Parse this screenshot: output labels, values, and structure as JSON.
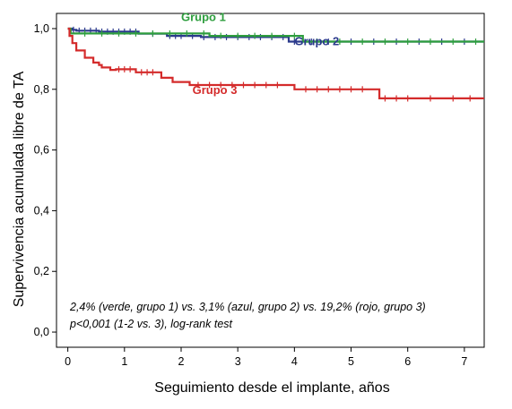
{
  "chart_data": {
    "type": "line",
    "xlabel": "Seguimiento desde el implante, años",
    "ylabel": "Supervivencia acumulada libre de TA",
    "xlim": [
      -0.2,
      7.35
    ],
    "ylim": [
      -0.05,
      1.05
    ],
    "x_ticks": [
      0,
      1,
      2,
      3,
      4,
      5,
      6,
      7
    ],
    "x_tick_labels": [
      "0",
      "1",
      "2",
      "3",
      "4",
      "5",
      "6",
      "7"
    ],
    "y_ticks": [
      0.0,
      0.2,
      0.4,
      0.6,
      0.8,
      1.0
    ],
    "y_tick_labels": [
      "0,0",
      "0,2",
      "0,4",
      "0,6",
      "0,8",
      "1,0"
    ],
    "grid": false,
    "annotation_lines": [
      "2,4% (verde, grupo 1) vs. 3,1% (azul, grupo 2) vs. 19,2% (rojo, grupo 3)",
      "p<0,001 (1-2 vs. 3), log-rank test"
    ],
    "series": [
      {
        "name": "Grupo 2",
        "color": "#2b3a8c",
        "x": [
          0,
          0.08,
          0.08,
          0.15,
          0.15,
          0.55,
          0.55,
          1.25,
          1.25,
          1.75,
          1.75,
          2.35,
          2.35,
          3.9,
          3.9,
          7.35
        ],
        "y": [
          1.0,
          1.0,
          0.996,
          0.996,
          0.993,
          0.993,
          0.99,
          0.99,
          0.983,
          0.983,
          0.976,
          0.976,
          0.972,
          0.972,
          0.957,
          0.957
        ],
        "censor_x": [
          0.1,
          0.2,
          0.3,
          0.4,
          0.5,
          0.6,
          0.7,
          0.8,
          0.9,
          1.0,
          1.1,
          1.2,
          1.5,
          1.8,
          1.9,
          2.0,
          2.2,
          2.4,
          2.6,
          2.8,
          3.0,
          3.2,
          3.4,
          3.6,
          3.8,
          4.0,
          4.3,
          4.6,
          5.0,
          5.4,
          5.8,
          6.2,
          6.6,
          7.0
        ]
      },
      {
        "name": "Grupo 1",
        "color": "#2e9e3e",
        "x": [
          0,
          0.05,
          0.05,
          2.5,
          2.5,
          4.15,
          4.15,
          7.35
        ],
        "y": [
          1.0,
          1.0,
          0.984,
          0.984,
          0.976,
          0.976,
          0.957,
          0.957
        ],
        "censor_x": [
          0.3,
          0.6,
          0.9,
          1.2,
          1.5,
          1.8,
          2.1,
          2.4,
          2.7,
          3.0,
          3.3,
          3.6,
          4.0,
          4.4,
          4.8,
          5.2,
          5.6,
          6.0,
          6.4,
          6.8,
          7.2
        ]
      },
      {
        "name": "Grupo 3",
        "color": "#d42b2b",
        "x": [
          0,
          0.03,
          0.03,
          0.08,
          0.08,
          0.15,
          0.15,
          0.3,
          0.3,
          0.45,
          0.45,
          0.55,
          0.55,
          0.6,
          0.6,
          0.75,
          0.75,
          0.85,
          0.85,
          1.2,
          1.2,
          1.65,
          1.65,
          1.85,
          1.85,
          2.15,
          2.15,
          4.0,
          4.0,
          5.5,
          5.5,
          7.35
        ],
        "y": [
          1.0,
          1.0,
          0.976,
          0.976,
          0.952,
          0.952,
          0.928,
          0.928,
          0.904,
          0.904,
          0.888,
          0.888,
          0.88,
          0.88,
          0.872,
          0.872,
          0.864,
          0.864,
          0.866,
          0.866,
          0.856,
          0.856,
          0.838,
          0.838,
          0.824,
          0.824,
          0.814,
          0.814,
          0.8,
          0.8,
          0.77,
          0.77
        ],
        "censor_x": [
          0.9,
          1.0,
          1.1,
          1.3,
          1.4,
          1.5,
          2.3,
          2.5,
          2.7,
          2.9,
          3.1,
          3.3,
          3.5,
          3.7,
          4.2,
          4.4,
          4.6,
          4.8,
          5.0,
          5.2,
          5.6,
          5.8,
          6.0,
          6.4,
          6.8,
          7.1
        ]
      }
    ],
    "series_labels": [
      {
        "text": "Grupo 1",
        "color": "#2e9e3e",
        "x": 2.0,
        "y": 1.025
      },
      {
        "text": "Grupo 2",
        "color": "#2b3a8c",
        "x": 4.0,
        "y": 0.945
      },
      {
        "text": "Grupo 3",
        "color": "#d42b2b",
        "x": 2.2,
        "y": 0.785
      }
    ]
  }
}
